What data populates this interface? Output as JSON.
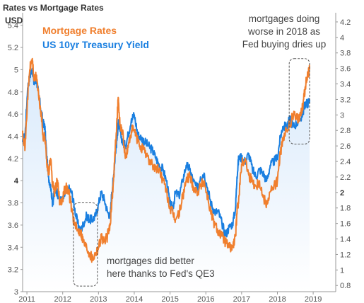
{
  "chart_data": {
    "type": "line",
    "title": "Rates vs Mortgage Rates",
    "left_axis_unit": "USD",
    "x_ticks": [
      "2011",
      "2012",
      "2013",
      "2014",
      "2015",
      "2016",
      "2017",
      "2018",
      "2019"
    ],
    "x_range": [
      2010.88,
      2019.63
    ],
    "left_axis": {
      "range": [
        3.0,
        5.5
      ],
      "ticks": [
        "3",
        "3.2",
        "3.4",
        "3.6",
        "3.8",
        "4",
        "4.2",
        "4.4",
        "4.6",
        "4.8",
        "5",
        "5.2",
        "5.4"
      ]
    },
    "right_axis": {
      "range": [
        0.72,
        4.3
      ],
      "ticks": [
        "0.8",
        "1",
        "1.2",
        "1.4",
        "1.6",
        "1.8",
        "2",
        "2.2",
        "2.4",
        "2.6",
        "2.8",
        "3",
        "3.2",
        "3.4",
        "3.6",
        "3.8",
        "4",
        "4.2"
      ]
    },
    "grid": false,
    "legend_position": "top-left",
    "colors": {
      "mortgage": "#f07f2e",
      "treasury": "#1a7fe0",
      "fill": "#d6e8fb"
    },
    "series": [
      {
        "name": "Mortgage Rates",
        "axis": "left",
        "x": [
          2010.88,
          2010.95,
          2011.02,
          2011.08,
          2011.15,
          2011.2,
          2011.27,
          2011.33,
          2011.4,
          2011.45,
          2011.5,
          2011.55,
          2011.6,
          2011.66,
          2011.72,
          2011.78,
          2011.85,
          2011.92,
          2012.0,
          2012.08,
          2012.17,
          2012.25,
          2012.33,
          2012.42,
          2012.5,
          2012.58,
          2012.67,
          2012.75,
          2012.83,
          2012.92,
          2013.0,
          2013.08,
          2013.17,
          2013.25,
          2013.33,
          2013.37,
          2013.42,
          2013.47,
          2013.52,
          2013.55,
          2013.6,
          2013.67,
          2013.75,
          2013.83,
          2013.92,
          2014.0,
          2014.1,
          2014.2,
          2014.3,
          2014.4,
          2014.5,
          2014.6,
          2014.7,
          2014.8,
          2014.9,
          2015.0,
          2015.08,
          2015.15,
          2015.25,
          2015.35,
          2015.45,
          2015.55,
          2015.65,
          2015.75,
          2015.85,
          2015.95,
          2016.05,
          2016.15,
          2016.25,
          2016.35,
          2016.45,
          2016.55,
          2016.65,
          2016.75,
          2016.83,
          2016.87,
          2016.92,
          2017.0,
          2017.1,
          2017.2,
          2017.3,
          2017.4,
          2017.5,
          2017.6,
          2017.7,
          2017.8,
          2017.9,
          2018.0,
          2018.08,
          2018.15,
          2018.25,
          2018.35,
          2018.45,
          2018.55,
          2018.65,
          2018.72,
          2018.78,
          2018.85,
          2018.9
        ],
        "values": [
          4.45,
          4.3,
          4.75,
          5.0,
          5.1,
          4.9,
          4.95,
          4.75,
          4.6,
          4.4,
          4.4,
          4.2,
          4.05,
          4.2,
          3.95,
          3.9,
          4.0,
          3.8,
          3.85,
          3.95,
          3.9,
          3.75,
          3.6,
          3.55,
          3.55,
          3.45,
          3.4,
          3.35,
          3.3,
          3.35,
          3.4,
          3.5,
          3.45,
          3.5,
          3.6,
          3.8,
          4.0,
          4.3,
          4.55,
          4.75,
          4.5,
          4.45,
          4.2,
          4.3,
          4.45,
          4.45,
          4.35,
          4.3,
          4.25,
          4.2,
          4.15,
          4.1,
          4.1,
          4.0,
          3.9,
          3.75,
          3.7,
          3.65,
          3.7,
          3.85,
          4.0,
          4.05,
          3.95,
          3.9,
          3.95,
          4.0,
          3.85,
          3.7,
          3.6,
          3.55,
          3.5,
          3.45,
          3.4,
          3.4,
          3.5,
          3.7,
          3.85,
          4.15,
          4.2,
          4.05,
          4.0,
          3.95,
          4.0,
          3.85,
          3.8,
          3.9,
          3.95,
          4.0,
          4.25,
          4.35,
          4.45,
          4.5,
          4.6,
          4.55,
          4.6,
          4.7,
          4.85,
          4.95,
          5.0
        ]
      },
      {
        "name": "US 10yr Treasury Yield",
        "axis": "right",
        "x": [
          2010.88,
          2010.95,
          2011.02,
          2011.08,
          2011.15,
          2011.2,
          2011.27,
          2011.33,
          2011.4,
          2011.45,
          2011.5,
          2011.55,
          2011.6,
          2011.66,
          2011.72,
          2011.78,
          2011.85,
          2011.92,
          2012.0,
          2012.08,
          2012.17,
          2012.25,
          2012.33,
          2012.42,
          2012.5,
          2012.58,
          2012.67,
          2012.75,
          2012.83,
          2012.92,
          2013.0,
          2013.08,
          2013.17,
          2013.25,
          2013.33,
          2013.37,
          2013.42,
          2013.47,
          2013.52,
          2013.55,
          2013.6,
          2013.67,
          2013.75,
          2013.83,
          2013.92,
          2014.0,
          2014.1,
          2014.2,
          2014.3,
          2014.4,
          2014.5,
          2014.6,
          2014.7,
          2014.8,
          2014.9,
          2015.0,
          2015.08,
          2015.15,
          2015.25,
          2015.35,
          2015.45,
          2015.55,
          2015.65,
          2015.75,
          2015.85,
          2015.95,
          2016.05,
          2016.15,
          2016.25,
          2016.35,
          2016.45,
          2016.55,
          2016.65,
          2016.75,
          2016.83,
          2016.87,
          2016.92,
          2017.0,
          2017.1,
          2017.2,
          2017.3,
          2017.4,
          2017.5,
          2017.6,
          2017.7,
          2017.8,
          2017.9,
          2018.0,
          2018.08,
          2018.15,
          2018.25,
          2018.35,
          2018.45,
          2018.55,
          2018.65,
          2018.72,
          2018.78,
          2018.85,
          2018.9
        ],
        "values": [
          2.65,
          2.75,
          3.35,
          3.5,
          3.6,
          3.4,
          3.45,
          3.25,
          3.05,
          2.9,
          2.85,
          2.5,
          2.2,
          2.1,
          1.85,
          2.05,
          2.0,
          1.9,
          1.9,
          2.0,
          2.05,
          2.0,
          1.8,
          1.6,
          1.5,
          1.6,
          1.7,
          1.65,
          1.65,
          1.7,
          1.85,
          2.0,
          1.9,
          1.75,
          1.7,
          2.0,
          2.2,
          2.5,
          2.7,
          2.9,
          2.8,
          2.65,
          2.6,
          2.75,
          2.95,
          3.0,
          2.75,
          2.7,
          2.65,
          2.6,
          2.55,
          2.45,
          2.35,
          2.3,
          2.15,
          1.85,
          1.8,
          2.0,
          1.95,
          2.15,
          2.35,
          2.3,
          2.15,
          2.05,
          2.2,
          2.25,
          2.05,
          1.85,
          1.75,
          1.75,
          1.6,
          1.45,
          1.55,
          1.6,
          1.8,
          2.2,
          2.45,
          2.45,
          2.4,
          2.5,
          2.3,
          2.2,
          2.3,
          2.25,
          2.15,
          2.35,
          2.4,
          2.45,
          2.7,
          2.85,
          2.85,
          2.95,
          2.85,
          2.9,
          2.95,
          3.05,
          3.15,
          3.15,
          3.2
        ]
      }
    ],
    "annotations": [
      {
        "text_lines": [
          "mortgages doing",
          "worse in 2018 as",
          "Fed buying dries up"
        ],
        "box_x": [
          2018.33,
          2018.9
        ],
        "box_y": [
          4.33,
          5.1
        ]
      },
      {
        "text_lines": [
          "mortgages did better",
          "here thanks to Fed's QE3"
        ],
        "box_x": [
          2012.3,
          2012.97
        ],
        "box_y": [
          3.05,
          3.8
        ]
      }
    ]
  }
}
